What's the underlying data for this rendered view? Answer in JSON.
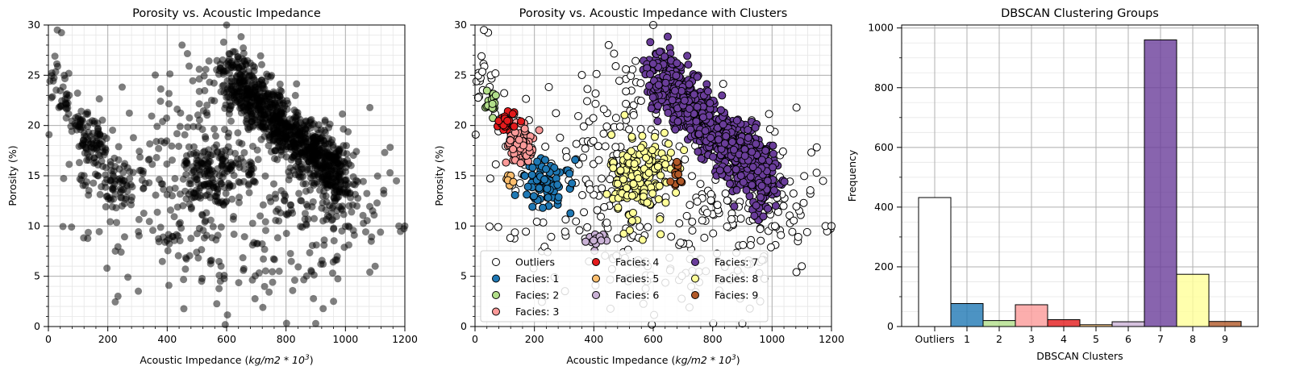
{
  "colors": {
    "outlier_face": "#ffffff",
    "edge": "#000000",
    "facies": {
      "1": "#1f78b4",
      "2": "#b2df8a",
      "3": "#fb9a99",
      "4": "#e31a1c",
      "5": "#fdbf6f",
      "6": "#cab2d6",
      "7": "#6a3d9a",
      "8": "#ffff99",
      "9": "#b15928"
    }
  },
  "chart_data": [
    {
      "type": "scatter",
      "title": "Porosity vs. Acoustic Impedance",
      "xlabel": "Acoustic Impedance (kg/m2 * 10^3)",
      "xlabel_parts": [
        "Acoustic Impedance (",
        "kg/m2 * 10",
        "3",
        ")"
      ],
      "ylabel": "Porosity (%)",
      "xlim": [
        0,
        1200
      ],
      "ylim": [
        0,
        30
      ],
      "xticks": [
        "0",
        "200",
        "400",
        "600",
        "800",
        "1000",
        "1200"
      ],
      "yticks": [
        "0",
        "5",
        "10",
        "15",
        "20",
        "25",
        "30"
      ],
      "grid": true,
      "point_color": "#000000",
      "note": "same points as the clustered panel, drawn in black with transparency"
    },
    {
      "type": "scatter",
      "title": "Porosity vs. Acoustic Impedance with Clusters",
      "xlabel": "Acoustic Impedance (kg/m2 * 10^3)",
      "xlabel_parts": [
        "Acoustic Impedance (",
        "kg/m2 * 10",
        "3",
        ")"
      ],
      "ylabel": "Porosity (%)",
      "xlim": [
        0,
        1200
      ],
      "ylim": [
        0,
        30
      ],
      "xticks": [
        "0",
        "200",
        "400",
        "600",
        "800",
        "1000",
        "1200"
      ],
      "yticks": [
        "0",
        "5",
        "10",
        "15",
        "20",
        "25",
        "30"
      ],
      "grid": true,
      "legend_position": "lower-left",
      "legend": [
        "Outliers",
        "Facies: 1",
        "Facies: 2",
        "Facies: 3",
        "Facies: 4",
        "Facies: 5",
        "Facies: 6",
        "Facies: 7",
        "Facies: 8",
        "Facies: 9"
      ],
      "clusters": [
        {
          "name": "Outliers",
          "key": "outliers",
          "regions": [
            {
              "cx": 180,
              "cy": 16,
              "sx": 150,
              "sy": 5,
              "n": 45
            },
            {
              "cx": 480,
              "cy": 17,
              "sx": 90,
              "sy": 6,
              "n": 120
            },
            {
              "cx": 700,
              "cy": 6,
              "sx": 160,
              "sy": 3,
              "n": 90
            },
            {
              "cx": 1000,
              "cy": 12,
              "sx": 110,
              "sy": 2.5,
              "n": 60
            },
            {
              "cx": 30,
              "cy": 25,
              "sx": 25,
              "sy": 3,
              "n": 25
            },
            {
              "cx": 850,
              "cy": 14,
              "sx": 120,
              "sy": 4,
              "n": 80
            },
            {
              "cx": 300,
              "cy": 10,
              "sx": 80,
              "sy": 3,
              "n": 20
            }
          ],
          "extra": [
            [
              600,
              30
            ],
            [
              30,
              29.5
            ],
            [
              450,
              28
            ],
            [
              900,
              0.3
            ],
            [
              1100,
              6
            ],
            [
              1180,
              10
            ],
            [
              1200,
              10
            ],
            [
              1150,
              15.3
            ]
          ]
        },
        {
          "name": "Facies: 1",
          "key": "1",
          "regions": [
            {
              "cx": 240,
              "cy": 14,
              "sx": 45,
              "sy": 1.3,
              "n": 70
            }
          ]
        },
        {
          "name": "Facies: 2",
          "key": "2",
          "regions": [
            {
              "cx": 60,
              "cy": 22.4,
              "sx": 12,
              "sy": 0.6,
              "n": 18
            }
          ]
        },
        {
          "name": "Facies: 3",
          "key": "3",
          "regions": [
            {
              "cx": 150,
              "cy": 18.2,
              "sx": 22,
              "sy": 1.0,
              "n": 70
            }
          ]
        },
        {
          "name": "Facies: 4",
          "key": "4",
          "regions": [
            {
              "cx": 110,
              "cy": 20.5,
              "sx": 15,
              "sy": 0.6,
              "n": 22
            }
          ]
        },
        {
          "name": "Facies: 5",
          "key": "5",
          "regions": [
            {
              "cx": 115,
              "cy": 14.7,
              "sx": 8,
              "sy": 0.3,
              "n": 6
            }
          ]
        },
        {
          "name": "Facies: 6",
          "key": "6",
          "regions": [
            {
              "cx": 410,
              "cy": 8.7,
              "sx": 15,
              "sy": 0.3,
              "n": 12
            }
          ]
        },
        {
          "name": "Facies: 7",
          "key": "7",
          "line": {
            "x0": 610,
            "y0": 25,
            "x1": 1000,
            "y1": 14
          },
          "spread_x": 25,
          "spread_y": 1.6,
          "n": 960
        },
        {
          "name": "Facies: 8",
          "key": "8",
          "regions": [
            {
              "cx": 560,
              "cy": 15,
              "sx": 50,
              "sy": 2.2,
              "n": 170
            }
          ]
        },
        {
          "name": "Facies: 9",
          "key": "9",
          "regions": [
            {
              "cx": 680,
              "cy": 15.2,
              "sx": 12,
              "sy": 0.7,
              "n": 16
            }
          ]
        }
      ]
    },
    {
      "type": "bar",
      "title": "DBSCAN Clustering Groups",
      "xlabel": "DBSCAN Clusters",
      "ylabel": "Frequency",
      "categories": [
        "Outliers",
        "1",
        "2",
        "3",
        "4",
        "5",
        "6",
        "7",
        "8",
        "9"
      ],
      "values": [
        432,
        77,
        20,
        73,
        23,
        6,
        16,
        960,
        175,
        17
      ],
      "ylim": [
        0,
        1010
      ],
      "yticks": [
        "0",
        "200",
        "400",
        "600",
        "800",
        "1000"
      ],
      "grid": true
    }
  ]
}
